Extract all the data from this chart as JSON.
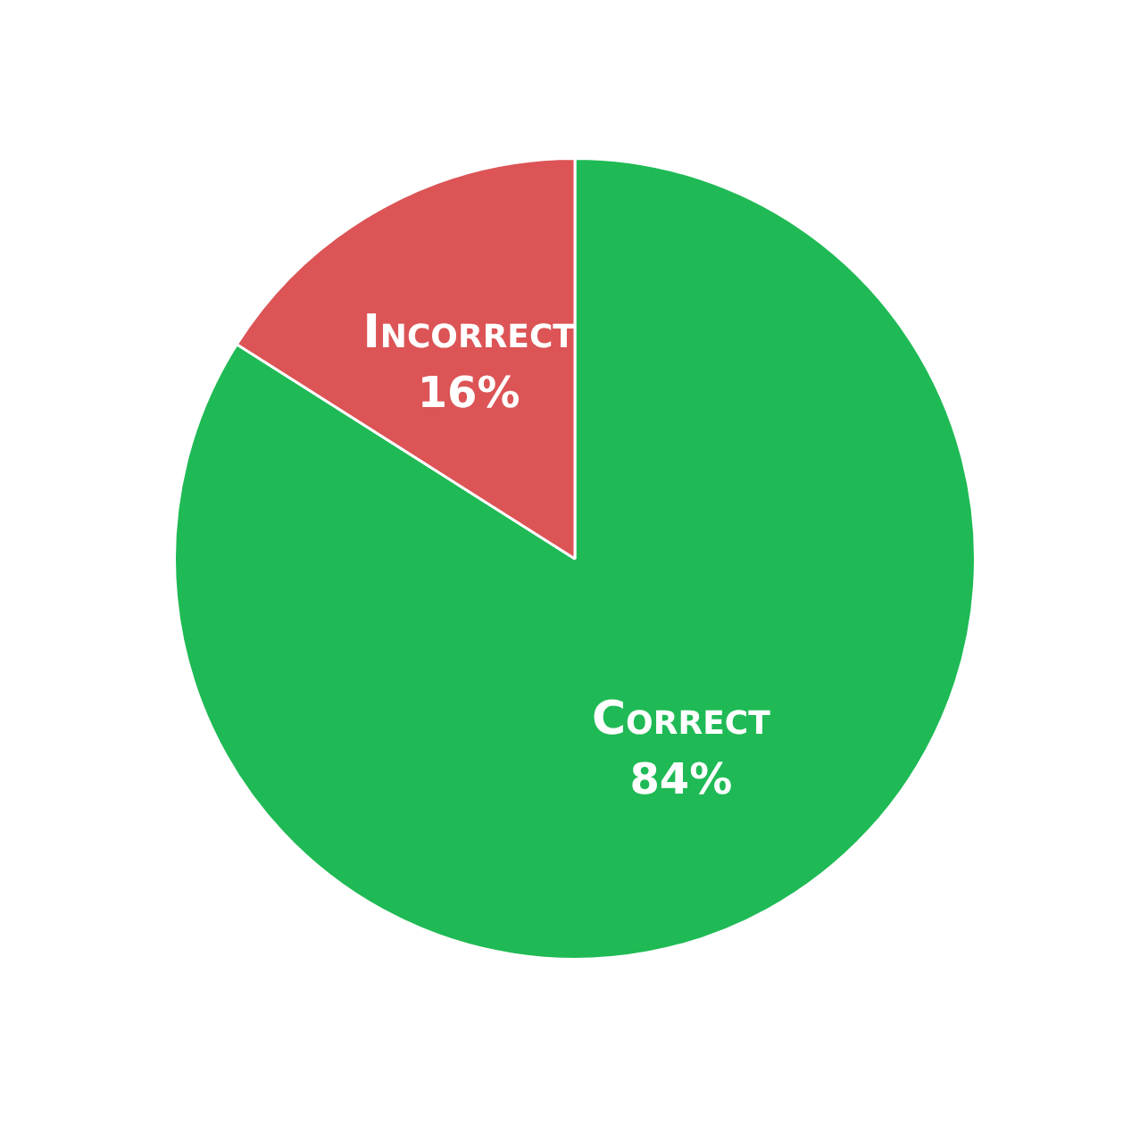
{
  "chart_data": {
    "type": "pie",
    "categories": [
      "Correct",
      "Incorrect"
    ],
    "values": [
      84,
      16
    ],
    "colors": [
      "#1fba55",
      "#dc5456"
    ],
    "value_labels": [
      "84%",
      "16%"
    ]
  }
}
